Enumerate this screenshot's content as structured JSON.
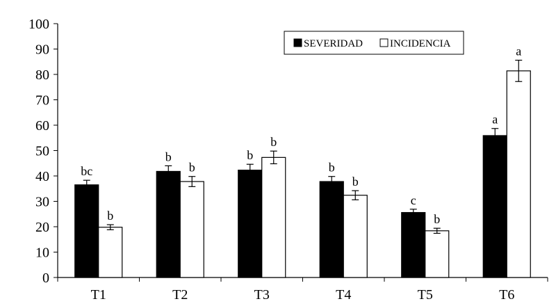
{
  "chart_data": {
    "type": "bar",
    "categories": [
      "T1",
      "T2",
      "T3",
      "T4",
      "T5",
      "T6"
    ],
    "series": [
      {
        "name": "SEVERIDAD",
        "color": "#000000",
        "values": [
          36.5,
          41.8,
          42.3,
          37.8,
          25.6,
          55.9
        ],
        "errors": [
          1.8,
          2.2,
          2.3,
          2.0,
          1.3,
          2.8
        ],
        "letters": [
          "bc",
          "b",
          "b",
          "b",
          "c",
          "a"
        ]
      },
      {
        "name": "INCIDENCIA",
        "color": "#ffffff",
        "values": [
          19.8,
          37.8,
          47.3,
          32.4,
          18.4,
          81.4
        ],
        "errors": [
          1.0,
          2.0,
          2.5,
          1.8,
          1.0,
          4.2
        ],
        "letters": [
          "b",
          "b",
          "b",
          "b",
          "b",
          "a"
        ]
      }
    ],
    "ylim": [
      0,
      100
    ],
    "yticks": [
      "0",
      "10",
      "20",
      "30",
      "40",
      "50",
      "60",
      "70",
      "80",
      "90",
      "100"
    ],
    "xlabel": "",
    "ylabel": "",
    "grid": false,
    "legend_position": "top-right"
  }
}
